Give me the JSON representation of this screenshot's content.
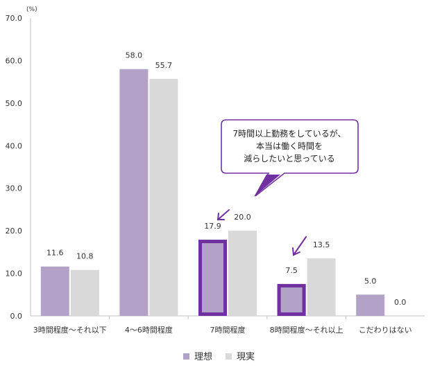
{
  "chart_data": {
    "type": "bar",
    "unit": "(%)",
    "ylim": [
      0,
      70
    ],
    "yticks": [
      "70.0",
      "60.0",
      "50.0",
      "40.0",
      "30.0",
      "20.0",
      "10.0",
      "0.0"
    ],
    "categories": [
      "3時間程度～それ以下",
      "4～6時間程度",
      "7時間程度",
      "8時間程度～それ以上",
      "こだわりはない"
    ],
    "series": [
      {
        "name": "理想",
        "values": [
          11.6,
          58.0,
          17.9,
          7.5,
          5.0
        ],
        "labels": [
          "11.6",
          "58.0",
          "17.9",
          "7.5",
          "5.0"
        ],
        "color": "#b3a2c8"
      },
      {
        "name": "現実",
        "values": [
          10.8,
          55.7,
          20.0,
          13.5,
          0.0
        ],
        "labels": [
          "10.8",
          "55.7",
          "20.0",
          "13.5",
          "0.0"
        ],
        "color": "#d9d9d9"
      }
    ],
    "highlighted": [
      {
        "series": 0,
        "category": 2
      },
      {
        "series": 0,
        "category": 3
      }
    ],
    "highlight_color": "#7030a0",
    "callout": {
      "lines": [
        "7時間以上勤務をしているが、",
        "本当は働く時間を",
        "減らしたいと思っている"
      ],
      "border_color": "#7030a0"
    },
    "legend": "bottom-center",
    "grid": false
  }
}
